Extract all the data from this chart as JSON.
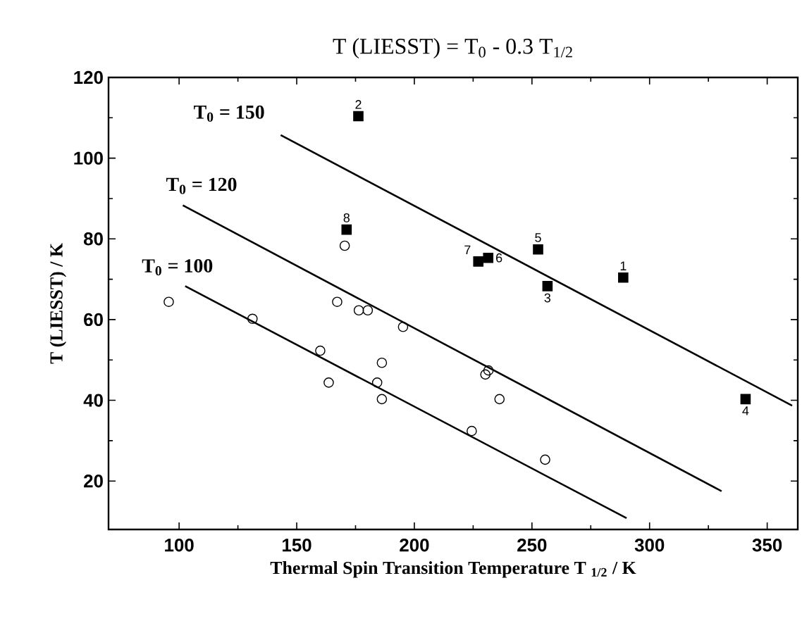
{
  "chart_data": {
    "type": "scatter",
    "title": "T (LIESST) = T$_{0}$ - 0.3 T$_{1/2}$",
    "xlabel": "Thermal Spin Transition Temperature T $_{1/2}$  / K",
    "ylabel": "T (LIESST)  /  K",
    "xlim": [
      70,
      363
    ],
    "ylim": [
      8,
      120
    ],
    "xticks": [
      100,
      150,
      200,
      250,
      300,
      350
    ],
    "yticks": [
      20,
      40,
      60,
      80,
      100,
      120
    ],
    "grid": false,
    "series": [
      {
        "marker": "square",
        "color": "#000000",
        "x": [
          288.8,
          176.2,
          256.6,
          340.8,
          252.6,
          231.4,
          227.2,
          171.2
        ],
        "values": [
          70.4,
          110.4,
          68.3,
          40.3,
          77.4,
          75.3,
          74.4,
          82.3
        ]
      },
      {
        "marker": "circle",
        "color": "#000000",
        "x": [
          95.6,
          131.2,
          160,
          163.6,
          167.2,
          170.4,
          176.4,
          180.2,
          195.2,
          186.2,
          184.2,
          186.2,
          224.4,
          230.2,
          231.5,
          236.2,
          255.6
        ],
        "values": [
          64.4,
          60.2,
          52.3,
          44.4,
          64.4,
          78.3,
          62.3,
          62.3,
          58.2,
          49.3,
          44.4,
          40.3,
          32.4,
          46.4,
          47.4,
          40.3,
          25.3
        ]
      },
      {
        "type": "line",
        "marker": "none",
        "color": "#000000",
        "x": [
          143.2,
          360.6
        ],
        "values": [
          105.7,
          38.7
        ]
      },
      {
        "type": "line",
        "marker": "none",
        "color": "#000000",
        "x": [
          101.6,
          330.6
        ],
        "values": [
          88.3,
          17.5
        ]
      },
      {
        "type": "line",
        "marker": "none",
        "color": "#000000",
        "x": [
          102.6,
          290.2
        ],
        "values": [
          68.3,
          10.8
        ]
      }
    ],
    "annotations": [
      "T$_{0}$ = 150",
      "T$_{0}$ = 120",
      "T$_{0}$ = 100",
      {
        "text": "1",
        "x": 288.8,
        "y": 70.4
      },
      {
        "text": "2",
        "x": 176.2,
        "y": 110.4
      },
      {
        "text": "3",
        "x": 256.6,
        "y": 68.3
      },
      {
        "text": "4",
        "x": 340.8,
        "y": 40.3
      },
      {
        "text": "5",
        "x": 252.6,
        "y": 77.4
      },
      {
        "text": "6",
        "x": 231.4,
        "y": 75.3
      },
      {
        "text": "7",
        "x": 227.2,
        "y": 74.4
      },
      {
        "text": "8",
        "x": 171.2,
        "y": 82.3
      }
    ]
  }
}
